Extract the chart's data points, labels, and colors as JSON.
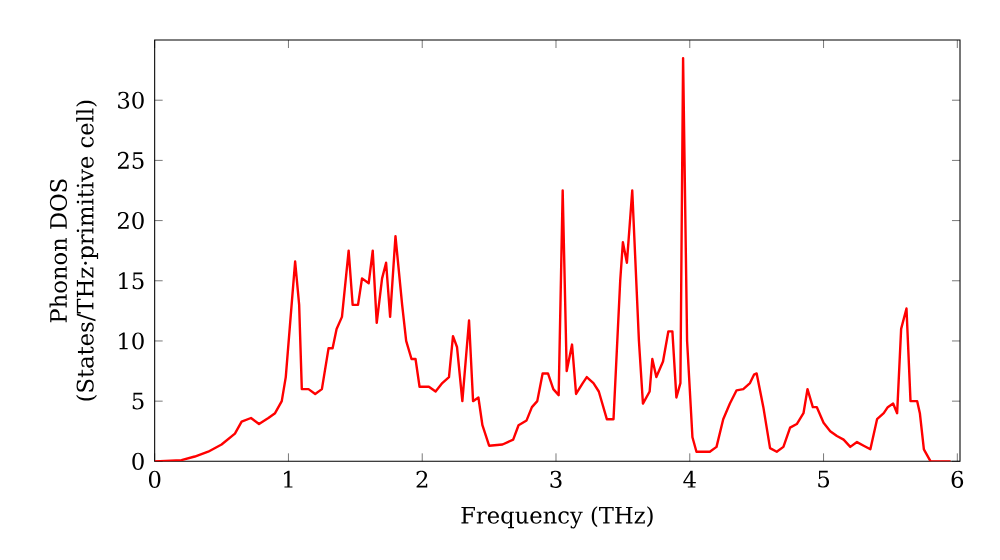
{
  "chart_data": {
    "type": "line",
    "xlabel": "Frequency (THz)",
    "ylabel": "Phonon DOS\n(States/THz·primitive cell)",
    "xlim": [
      0,
      6.02
    ],
    "ylim": [
      0,
      35
    ],
    "xticks": [
      0,
      1,
      2,
      3,
      4,
      5,
      6
    ],
    "yticks": [
      0,
      5,
      10,
      15,
      20,
      25,
      30
    ],
    "marker": "none",
    "line_style": "solid",
    "series": [
      {
        "color": "#ff0000",
        "x": [
          0,
          0.2,
          0.3,
          0.4,
          0.5,
          0.6,
          0.65,
          0.72,
          0.78,
          0.85,
          0.9,
          0.95,
          0.98,
          1.02,
          1.05,
          1.08,
          1.1,
          1.15,
          1.2,
          1.25,
          1.3,
          1.33,
          1.36,
          1.4,
          1.45,
          1.48,
          1.52,
          1.55,
          1.6,
          1.63,
          1.66,
          1.7,
          1.73,
          1.76,
          1.8,
          1.85,
          1.88,
          1.92,
          1.95,
          1.98,
          2.05,
          2.1,
          2.15,
          2.2,
          2.23,
          2.26,
          2.3,
          2.35,
          2.38,
          2.42,
          2.45,
          2.5,
          2.6,
          2.68,
          2.72,
          2.78,
          2.82,
          2.86,
          2.9,
          2.94,
          2.98,
          3.02,
          3.05,
          3.08,
          3.12,
          3.15,
          3.2,
          3.23,
          3.28,
          3.32,
          3.38,
          3.43,
          3.48,
          3.5,
          3.53,
          3.57,
          3.62,
          3.65,
          3.7,
          3.72,
          3.75,
          3.8,
          3.84,
          3.87,
          3.9,
          3.93,
          3.95,
          3.98,
          4.02,
          4.05,
          4.15,
          4.2,
          4.25,
          4.3,
          4.35,
          4.4,
          4.45,
          4.48,
          4.5,
          4.55,
          4.6,
          4.65,
          4.7,
          4.75,
          4.8,
          4.85,
          4.88,
          4.92,
          4.95,
          5.0,
          5.05,
          5.1,
          5.15,
          5.2,
          5.25,
          5.3,
          5.35,
          5.4,
          5.45,
          5.48,
          5.52,
          5.55,
          5.58,
          5.62,
          5.65,
          5.7,
          5.72,
          5.75,
          5.8,
          5.95
        ],
        "values": [
          0,
          0.1,
          0.4,
          0.8,
          1.4,
          2.3,
          3.3,
          3.6,
          3.1,
          3.6,
          4.0,
          5.0,
          7,
          12.5,
          16.6,
          13,
          6,
          6,
          5.6,
          6,
          9.4,
          9.4,
          11,
          12,
          17.5,
          13,
          13,
          15.2,
          14.8,
          17.5,
          11.5,
          15.2,
          16.5,
          12,
          18.7,
          13,
          10,
          8.5,
          8.5,
          6.2,
          6.2,
          5.8,
          6.5,
          7,
          10.4,
          9.5,
          5,
          11.7,
          5,
          5.3,
          3,
          1.3,
          1.4,
          1.8,
          3.0,
          3.4,
          4.5,
          5,
          7.3,
          7.3,
          6,
          5.5,
          22.5,
          7.5,
          9.7,
          5.6,
          6.5,
          7,
          6.5,
          5.8,
          3.5,
          3.5,
          15,
          18.2,
          16.5,
          22.5,
          10,
          4.8,
          5.8,
          8.5,
          7,
          8.3,
          10.8,
          10.8,
          5.3,
          6.5,
          33.5,
          10,
          2,
          0.8,
          0.8,
          1.2,
          3.5,
          4.8,
          5.9,
          6.0,
          6.5,
          7.2,
          7.3,
          4.5,
          1.1,
          0.8,
          1.2,
          2.8,
          3.1,
          4,
          6,
          4.5,
          4.5,
          3.2,
          2.5,
          2.1,
          1.8,
          1.2,
          1.6,
          1.3,
          1.0,
          3.5,
          4.0,
          4.5,
          4.8,
          4.0,
          11,
          12.7,
          5.0,
          5.0,
          4.0,
          1,
          0,
          0
        ]
      }
    ]
  }
}
